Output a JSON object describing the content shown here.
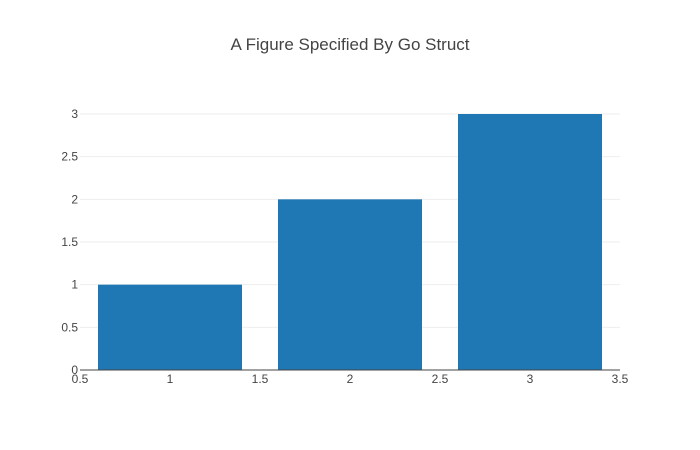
{
  "chart_data": {
    "type": "bar",
    "title": "A Figure Specified By Go Struct",
    "x": [
      1,
      2,
      3
    ],
    "values": [
      1,
      2,
      3
    ],
    "bar_width": 0.8,
    "xlabel": "",
    "ylabel": "",
    "xlim": [
      0.5,
      3.5
    ],
    "ylim": [
      0,
      3
    ],
    "x_ticks": [
      0.5,
      1,
      1.5,
      2,
      2.5,
      3,
      3.5
    ],
    "x_tick_labels": [
      "0.5",
      "1",
      "1.5",
      "2",
      "2.5",
      "3",
      "3.5"
    ],
    "y_ticks": [
      0,
      0.5,
      1,
      1.5,
      2,
      2.5,
      3
    ],
    "y_tick_labels": [
      "0",
      "0.5",
      "1",
      "1.5",
      "2",
      "2.5",
      "3"
    ],
    "grid": true,
    "legend": false,
    "colors": {
      "bar": "#1f77b4",
      "grid": "#eeeeee",
      "axis": "#444444",
      "text": "#444444"
    }
  }
}
